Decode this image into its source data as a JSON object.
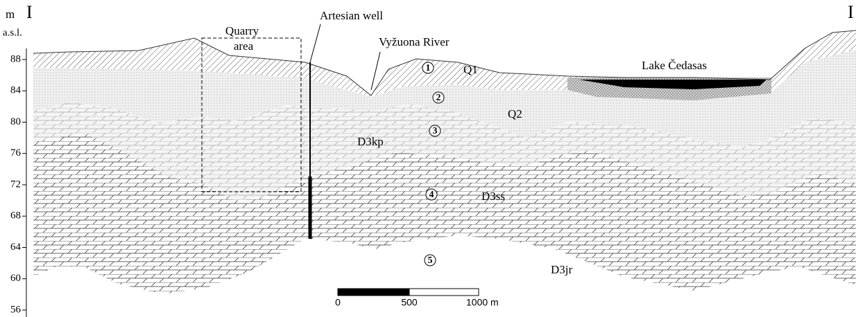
{
  "axis": {
    "unit": "m",
    "unit_sub": "a.s.l.",
    "ticks": [
      88,
      84,
      80,
      76,
      72,
      68,
      64,
      60,
      56
    ]
  },
  "section": {
    "start": "I",
    "end": "I"
  },
  "labels": {
    "quarry": [
      "Quarry",
      "area"
    ],
    "well": "Artesian well",
    "river": "Vyžuona River",
    "lake": "Lake Čedasas"
  },
  "layers": [
    {
      "number": 1,
      "code": "Q1"
    },
    {
      "number": 2,
      "code": "Q2"
    },
    {
      "number": 3,
      "code": "D3kp"
    },
    {
      "number": 4,
      "code": "D3ss"
    },
    {
      "number": 5,
      "code": "D3jr"
    }
  ],
  "scale": {
    "ticks": [
      "0",
      "500",
      "1000 m"
    ]
  }
}
